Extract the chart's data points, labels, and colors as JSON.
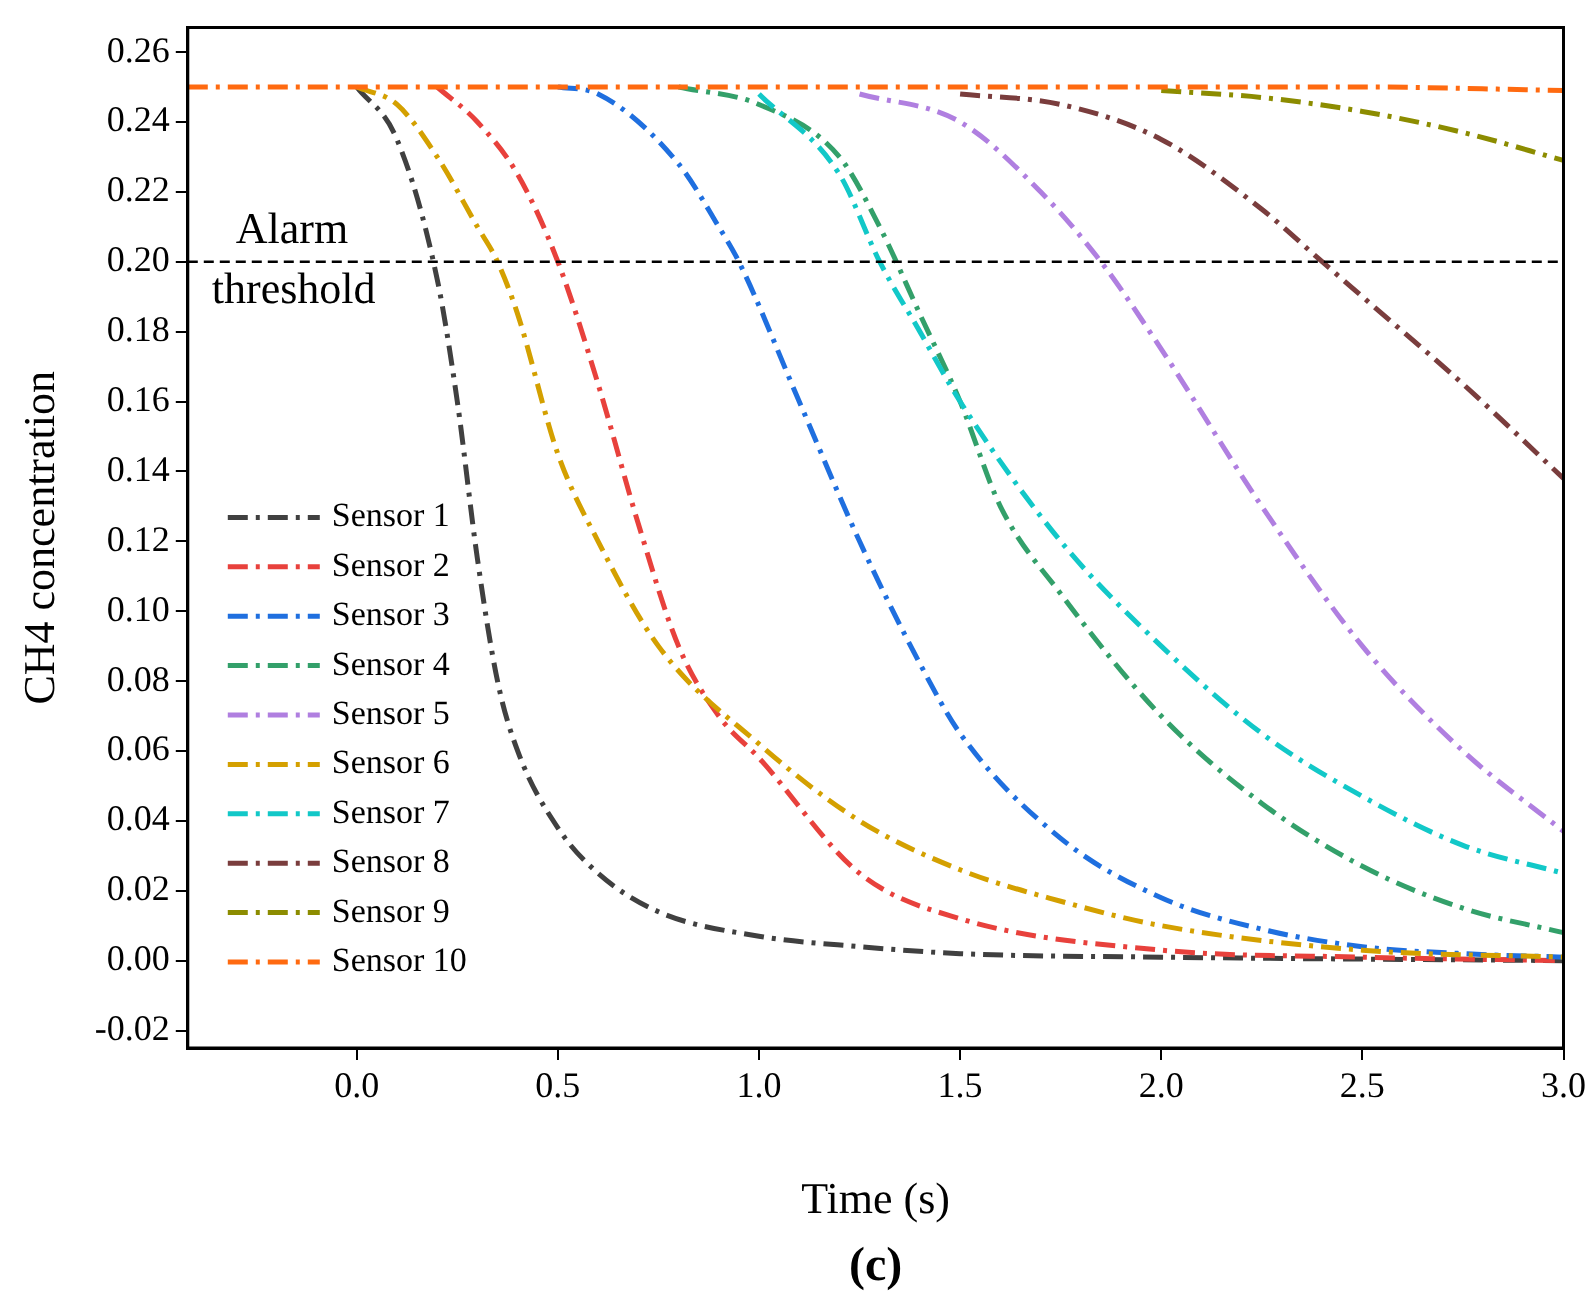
{
  "chart_data": {
    "type": "line",
    "xlabel": "Time (s)",
    "ylabel": "CH4 concentration",
    "annotations": [
      "(c)"
    ],
    "xlim": [
      -0.42,
      3.0
    ],
    "ylim": [
      -0.025,
      0.267
    ],
    "xticks": [
      {
        "value": 0,
        "label": "0.0"
      },
      {
        "value": 0.5,
        "label": "0.5"
      },
      {
        "value": 1,
        "label": "1.0"
      },
      {
        "value": 1.5,
        "label": "1.5"
      },
      {
        "value": 2,
        "label": "2.0"
      },
      {
        "value": 2.5,
        "label": "2.5"
      },
      {
        "value": 3,
        "label": "3.0"
      }
    ],
    "yticks": [
      {
        "value": -0.02,
        "label": "-0.02"
      },
      {
        "value": 0,
        "label": "0.00"
      },
      {
        "value": 0.02,
        "label": "0.02"
      },
      {
        "value": 0.04,
        "label": "0.04"
      },
      {
        "value": 0.06,
        "label": "0.06"
      },
      {
        "value": 0.08,
        "label": "0.08"
      },
      {
        "value": 0.1,
        "label": "0.10"
      },
      {
        "value": 0.12,
        "label": "0.12"
      },
      {
        "value": 0.14,
        "label": "0.14"
      },
      {
        "value": 0.16,
        "label": "0.16"
      },
      {
        "value": 0.18,
        "label": "0.18"
      },
      {
        "value": 0.2,
        "label": "0.20"
      },
      {
        "value": 0.22,
        "label": "0.22"
      },
      {
        "value": 0.24,
        "label": "0.24"
      },
      {
        "value": 0.26,
        "label": "0.26"
      }
    ],
    "grid": false,
    "legend": "left",
    "line_style": "dashed",
    "ref_lines": [
      {
        "axis": "y",
        "value": 0.2,
        "label": "Alarm threshold",
        "color": "#000000",
        "line_style": "dashed"
      }
    ],
    "series": [
      {
        "name": "Sensor 1",
        "color": "#404040",
        "x": [
          0,
          0.1,
          0.2,
          0.25,
          0.3,
          0.35,
          0.4,
          0.5,
          0.6,
          0.75,
          1.0,
          1.25,
          1.5,
          2.0,
          3.0
        ],
        "values": [
          0.25,
          0.235,
          0.195,
          0.16,
          0.115,
          0.08,
          0.06,
          0.038,
          0.025,
          0.014,
          0.007,
          0.004,
          0.002,
          0.001,
          0
        ]
      },
      {
        "name": "Sensor 2",
        "color": "#e8413c",
        "x": [
          0.2,
          0.3,
          0.4,
          0.5,
          0.6,
          0.7,
          0.8,
          0.9,
          1.0,
          1.25,
          1.5,
          2.0,
          2.5,
          3.0
        ],
        "values": [
          0.25,
          0.24,
          0.225,
          0.2,
          0.165,
          0.125,
          0.09,
          0.07,
          0.058,
          0.025,
          0.012,
          0.003,
          0.001,
          0
        ]
      },
      {
        "name": "Sensor 3",
        "color": "#1f6fdf",
        "x": [
          0.5,
          0.6,
          0.8,
          0.9,
          0.95,
          1.1,
          1.25,
          1.4,
          1.5,
          1.75,
          2.0,
          2.25,
          2.5,
          2.75,
          3.0
        ],
        "values": [
          0.25,
          0.248,
          0.228,
          0.21,
          0.2,
          0.16,
          0.12,
          0.085,
          0.065,
          0.035,
          0.018,
          0.009,
          0.004,
          0.002,
          0.001
        ]
      },
      {
        "name": "Sensor 4",
        "color": "#33a06a",
        "x": [
          0.8,
          1.0,
          1.2,
          1.3,
          1.4,
          1.5,
          1.6,
          1.75,
          2.0,
          2.25,
          2.5,
          2.75,
          3.0
        ],
        "values": [
          0.25,
          0.245,
          0.23,
          0.21,
          0.185,
          0.16,
          0.13,
          0.105,
          0.07,
          0.045,
          0.027,
          0.015,
          0.008
        ]
      },
      {
        "name": "Sensor 5",
        "color": "#b07fe0",
        "x": [
          1.25,
          1.5,
          1.7,
          1.85,
          2.0,
          2.25,
          2.5,
          2.75,
          3.0
        ],
        "values": [
          0.248,
          0.24,
          0.22,
          0.2,
          0.175,
          0.13,
          0.09,
          0.06,
          0.037
        ]
      },
      {
        "name": "Sensor 6",
        "color": "#d4a000",
        "x": [
          0,
          0.1,
          0.2,
          0.3,
          0.35,
          0.4,
          0.5,
          0.6,
          0.75,
          1.0,
          1.25,
          1.5,
          1.75,
          2.0,
          2.5,
          3.0
        ],
        "values": [
          0.25,
          0.245,
          0.23,
          0.21,
          0.2,
          0.185,
          0.145,
          0.12,
          0.09,
          0.062,
          0.04,
          0.026,
          0.017,
          0.01,
          0.003,
          0.001
        ]
      },
      {
        "name": "Sensor 7",
        "color": "#12c8c8",
        "x": [
          1.0,
          1.2,
          1.3,
          1.4,
          1.5,
          1.75,
          2.0,
          2.25,
          2.5,
          2.75,
          3.0
        ],
        "values": [
          0.248,
          0.225,
          0.2,
          0.18,
          0.16,
          0.12,
          0.09,
          0.065,
          0.047,
          0.033,
          0.025
        ]
      },
      {
        "name": "Sensor 8",
        "color": "#7a3d3d",
        "x": [
          1.5,
          1.75,
          2.0,
          2.25,
          2.4,
          2.5,
          2.75,
          3.0
        ],
        "values": [
          0.248,
          0.245,
          0.235,
          0.215,
          0.2,
          0.19,
          0.165,
          0.138
        ]
      },
      {
        "name": "Sensor 9",
        "color": "#8c8c00",
        "x": [
          2.0,
          2.25,
          2.5,
          2.75,
          3.0
        ],
        "values": [
          0.249,
          0.247,
          0.243,
          0.237,
          0.229
        ]
      },
      {
        "name": "Sensor 10",
        "color": "#ff6a10",
        "x": [
          -0.42,
          2.5,
          3.0
        ],
        "values": [
          0.25,
          0.25,
          0.249
        ]
      }
    ]
  }
}
